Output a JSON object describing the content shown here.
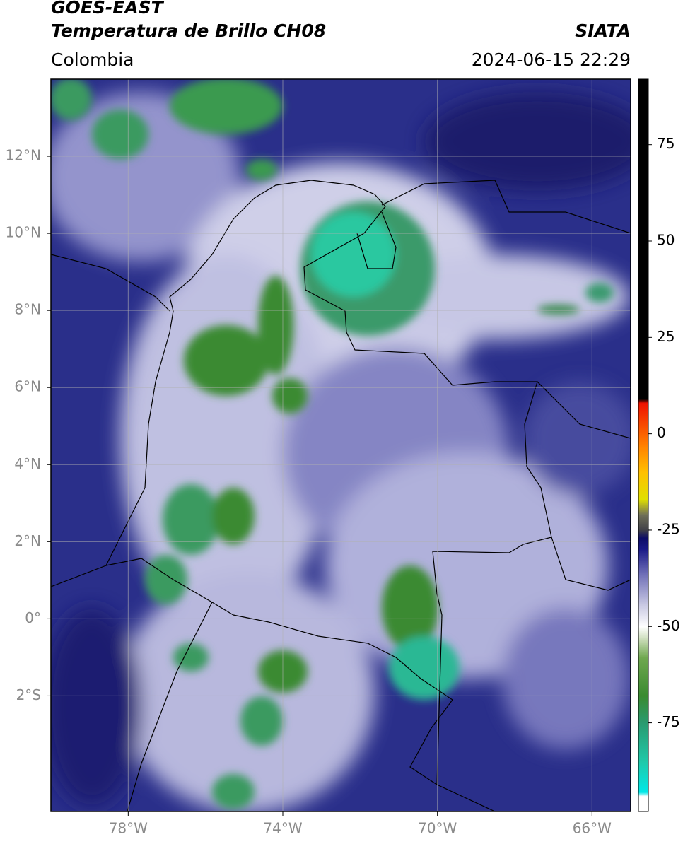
{
  "header": {
    "title": "GOES-EAST",
    "subtitle": "Temperatura de Brillo CH08",
    "region": "Colombia",
    "source": "SIATA",
    "datetime": "2024-06-15 22:29"
  },
  "map": {
    "xlim": [
      -80,
      -65
    ],
    "ylim": [
      -5,
      14
    ],
    "xticks": [
      {
        "value": -78,
        "label": "78°W"
      },
      {
        "value": -74,
        "label": "74°W"
      },
      {
        "value": -70,
        "label": "70°W"
      },
      {
        "value": -66,
        "label": "66°W"
      }
    ],
    "yticks": [
      {
        "value": 12,
        "label": "12°N"
      },
      {
        "value": 10,
        "label": "10°N"
      },
      {
        "value": 8,
        "label": "8°N"
      },
      {
        "value": 6,
        "label": "6°N"
      },
      {
        "value": 4,
        "label": "4°N"
      },
      {
        "value": 2,
        "label": "2°N"
      },
      {
        "value": 0,
        "label": "0°"
      },
      {
        "value": -2,
        "label": "2°S"
      }
    ],
    "grid": true
  },
  "colorbar": {
    "lim": [
      -98,
      92
    ],
    "ticks": [
      75,
      50,
      25,
      0,
      -25,
      -50,
      -75
    ],
    "stops": [
      {
        "value": -98,
        "color": "#ffffff"
      },
      {
        "value": -94,
        "color": "#ffffff"
      },
      {
        "value": -93,
        "color": "#00e8e8"
      },
      {
        "value": -85,
        "color": "#20c8a8"
      },
      {
        "value": -75,
        "color": "#2a9a70"
      },
      {
        "value": -68,
        "color": "#3a8a30"
      },
      {
        "value": -58,
        "color": "#70a850"
      },
      {
        "value": -53,
        "color": "#d0e0c0"
      },
      {
        "value": -50,
        "color": "#ffffff"
      },
      {
        "value": -44,
        "color": "#c4c4e0"
      },
      {
        "value": -36,
        "color": "#6a6ab4"
      },
      {
        "value": -30,
        "color": "#1a1a88"
      },
      {
        "value": -27,
        "color": "#0c0c66"
      },
      {
        "value": -25,
        "color": "#404048"
      },
      {
        "value": -21,
        "color": "#707058"
      },
      {
        "value": -17,
        "color": "#e0e000"
      },
      {
        "value": -10,
        "color": "#ffc000"
      },
      {
        "value": -3,
        "color": "#ff8000"
      },
      {
        "value": 8,
        "color": "#ee1100"
      },
      {
        "value": 9,
        "color": "#000000"
      },
      {
        "value": 92,
        "color": "#000000"
      }
    ]
  }
}
